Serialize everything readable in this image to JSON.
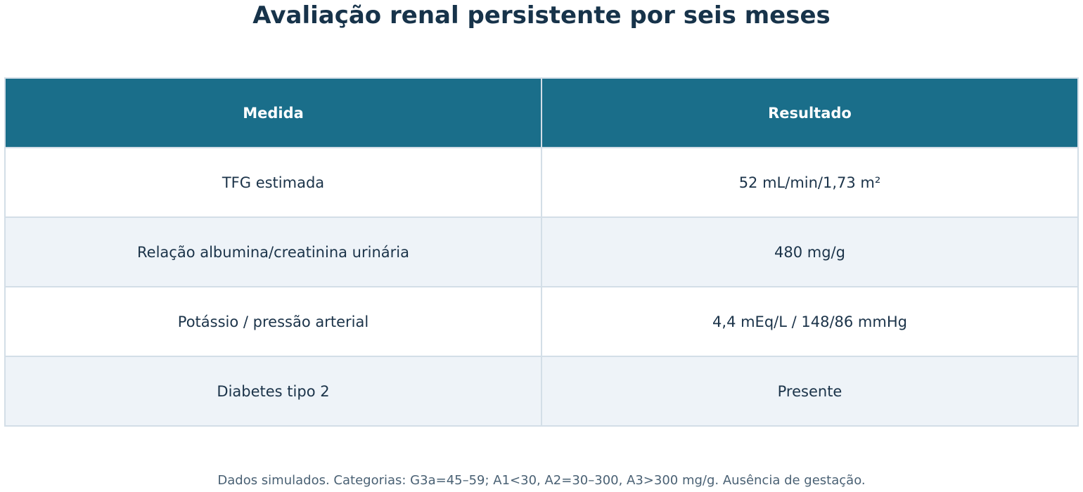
{
  "chart_data": {
    "type": "table",
    "title": "Avaliação renal persistente por seis meses",
    "columns": [
      "Medida",
      "Resultado"
    ],
    "rows": [
      [
        "TFG estimada",
        "52 mL/min/1,73 m²"
      ],
      [
        "Relação albumina/creatinina urinária",
        "480 mg/g"
      ],
      [
        "Potássio / pressão arterial",
        "4,4 mEq/L / 148/86 mmHg"
      ],
      [
        "Diabetes tipo 2",
        "Presente"
      ]
    ],
    "footnote": "Dados simulados. Categorias: G3a=45–59; A1<30, A2=30–300, A3>300 mg/g. Ausência de gestação."
  },
  "colors": {
    "header_background": "#1a6e8a",
    "header_text": "#ffffff",
    "row_alt_background": "#eef3f8",
    "border": "#d3dee7",
    "text": "#1b3349"
  }
}
